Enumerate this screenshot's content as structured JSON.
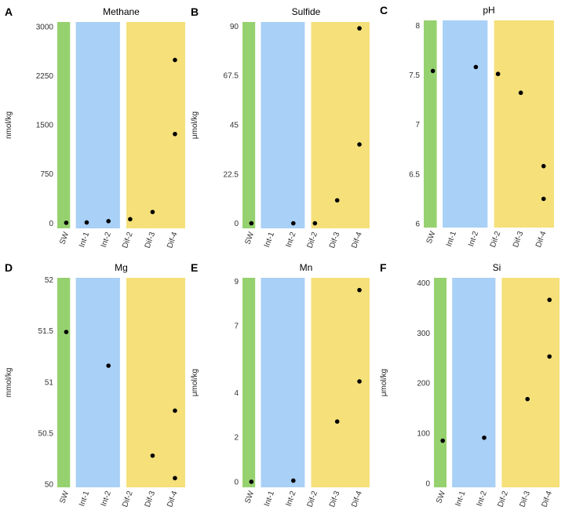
{
  "colors": {
    "sw": "#96d16f",
    "int": "#a9d0f6",
    "dif": "#f5e07a",
    "point": "#000000"
  },
  "chart_data": [
    {
      "type": "scatter",
      "panel": "A",
      "title": "Methane",
      "ylabel": "nmol/kg",
      "categories": [
        "SW",
        "Int-1",
        "Int-2",
        "Dif-2",
        "Dif-3",
        "Dif-4"
      ],
      "yticks": [
        0,
        750,
        1500,
        2250,
        3000
      ],
      "ytick_labels": [
        "0",
        "750",
        "1500",
        "2250",
        "3000"
      ],
      "ylim": [
        -80,
        3070
      ],
      "points": [
        {
          "x": "SW",
          "y": 5
        },
        {
          "x": "Int-1",
          "y": 10
        },
        {
          "x": "Int-2",
          "y": 30
        },
        {
          "x": "Dif-2",
          "y": 60
        },
        {
          "x": "Dif-3",
          "y": 170
        },
        {
          "x": "Dif-4",
          "y": 1360
        },
        {
          "x": "Dif-4",
          "y": 2490
        }
      ]
    },
    {
      "type": "scatter",
      "panel": "B",
      "title": "Sulfide",
      "ylabel": "μmol/kg",
      "categories": [
        "SW",
        "Int-1",
        "Int-2",
        "Dif-2",
        "Dif-3",
        "Dif-4"
      ],
      "yticks": [
        0,
        22.5,
        45,
        67.5,
        90
      ],
      "ytick_labels": [
        "0",
        "22.5",
        "45",
        "67.5",
        "90"
      ],
      "ylim": [
        -2.3,
        91.9
      ],
      "points": [
        {
          "x": "SW",
          "y": 0
        },
        {
          "x": "Int-2",
          "y": 0
        },
        {
          "x": "Dif-2",
          "y": 0
        },
        {
          "x": "Dif-3",
          "y": 10.5
        },
        {
          "x": "Dif-4",
          "y": 36
        },
        {
          "x": "Dif-4",
          "y": 89
        }
      ]
    },
    {
      "type": "scatter",
      "panel": "C",
      "title": "pH",
      "ylabel": "",
      "categories": [
        "SW",
        "Int-1",
        "Int-2",
        "Dif-2",
        "Dif-3",
        "Dif-4"
      ],
      "yticks": [
        6,
        6.5,
        7,
        7.5,
        8
      ],
      "ytick_labels": [
        "6",
        "6.5",
        "7",
        "7.5",
        "8"
      ],
      "ylim": [
        5.96,
        8.05
      ],
      "points": [
        {
          "x": "SW",
          "y": 7.54
        },
        {
          "x": "Int-2",
          "y": 7.58
        },
        {
          "x": "Dif-2",
          "y": 7.51
        },
        {
          "x": "Dif-3",
          "y": 7.32
        },
        {
          "x": "Dif-4",
          "y": 6.58
        },
        {
          "x": "Dif-4",
          "y": 6.25
        }
      ]
    },
    {
      "type": "scatter",
      "panel": "D",
      "title": "Mg",
      "ylabel": "mmol/kg",
      "categories": [
        "SW",
        "Int-1",
        "Int-2",
        "Dif-2",
        "Dif-3",
        "Dif-4"
      ],
      "yticks": [
        50,
        50.5,
        51,
        51.5,
        52
      ],
      "ytick_labels": [
        "50",
        "50.5",
        "51",
        "51.5",
        "52"
      ],
      "ylim": [
        49.97,
        52.02
      ],
      "points": [
        {
          "x": "SW",
          "y": 51.49
        },
        {
          "x": "Int-2",
          "y": 51.16
        },
        {
          "x": "Dif-3",
          "y": 50.28
        },
        {
          "x": "Dif-4",
          "y": 50.72
        },
        {
          "x": "Dif-4",
          "y": 50.06
        }
      ]
    },
    {
      "type": "scatter",
      "panel": "E",
      "title": "Mn",
      "ylabel": "μmol/kg",
      "categories": [
        "SW",
        "Int-1",
        "Int-2",
        "Dif-2",
        "Dif-3",
        "Dif-4"
      ],
      "yticks": [
        0,
        2,
        4,
        7,
        9
      ],
      "ytick_labels": [
        "0",
        "2",
        "4",
        "7",
        "9"
      ],
      "ylim": [
        -0.25,
        9.15
      ],
      "points": [
        {
          "x": "SW",
          "y": 0
        },
        {
          "x": "Int-2",
          "y": 0.05
        },
        {
          "x": "Dif-3",
          "y": 2.7
        },
        {
          "x": "Dif-4",
          "y": 4.5
        },
        {
          "x": "Dif-4",
          "y": 8.6
        }
      ]
    },
    {
      "type": "scatter",
      "panel": "F",
      "title": "Si",
      "ylabel": "μmol/kg",
      "categories": [
        "SW",
        "Int-1",
        "Int-2",
        "Dif-2",
        "Dif-3",
        "Dif-4"
      ],
      "yticks": [
        0,
        100,
        200,
        300,
        400
      ],
      "ytick_labels": [
        "0",
        "100",
        "200",
        "300",
        "400"
      ],
      "ylim": [
        -8,
        410
      ],
      "points": [
        {
          "x": "SW",
          "y": 85
        },
        {
          "x": "Int-2",
          "y": 91
        },
        {
          "x": "Dif-3",
          "y": 168
        },
        {
          "x": "Dif-4",
          "y": 253
        },
        {
          "x": "Dif-4",
          "y": 366
        }
      ]
    }
  ]
}
